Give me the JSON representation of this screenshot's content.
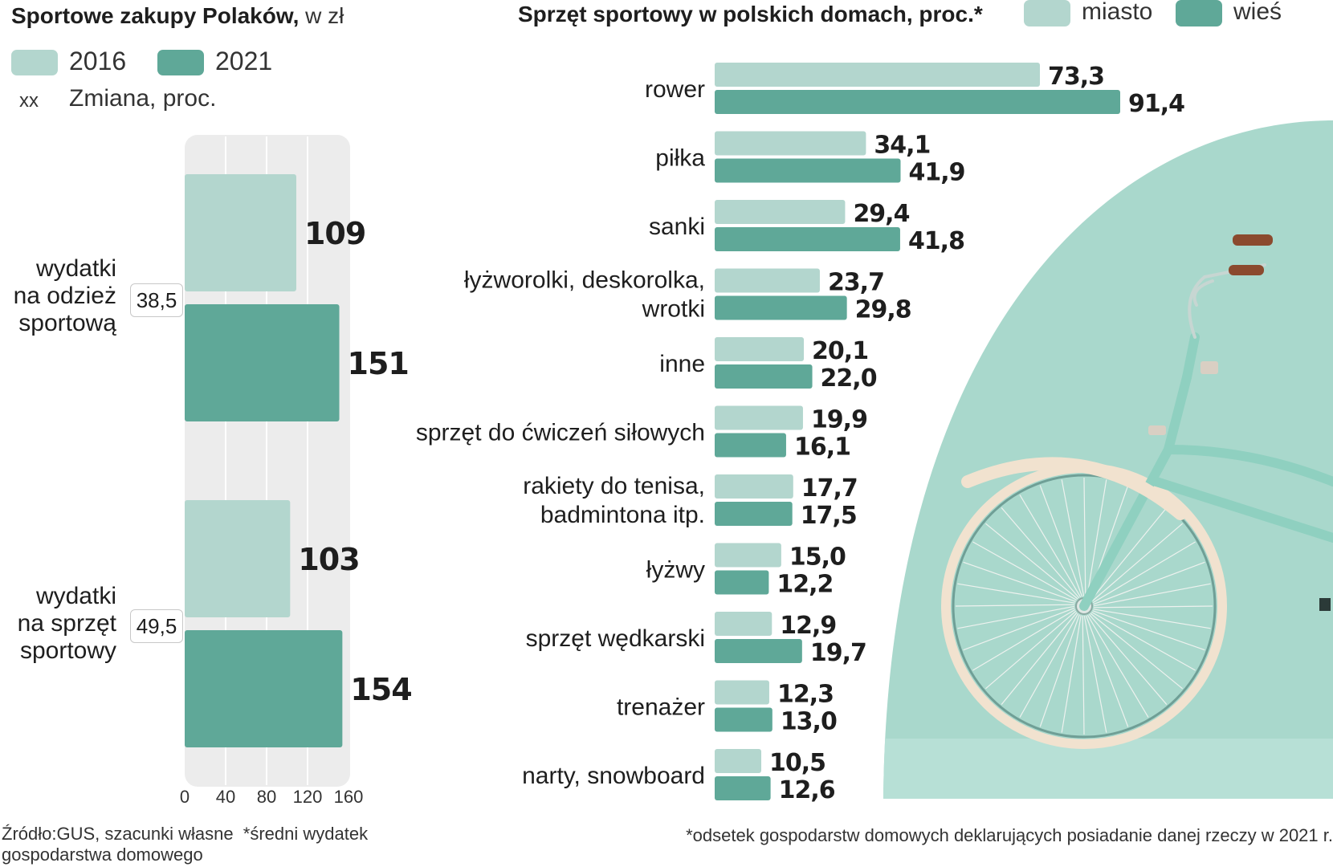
{
  "colors": {
    "light": "#b3d6ce",
    "dark": "#5fa898",
    "panel": "#a9d8cc",
    "gridbg": "#ececec",
    "gridline": "#ffffff"
  },
  "left": {
    "title": "Sportowe zakupy Polaków,",
    "title_unit": "w zł",
    "legend": {
      "a": "2016",
      "b": "2021",
      "change_symbol": "xx",
      "change_label": "Zmiana, proc."
    },
    "footnote_source": "Źródło:GUS, szacunki własne",
    "footnote_note": "*średni wydatek",
    "footnote_note2": "gospodarstwa domowego",
    "groups": [
      {
        "label_lines": [
          "wydatki",
          "na odzież",
          "sportową"
        ],
        "change": "38,5"
      },
      {
        "label_lines": [
          "wydatki",
          "na sprzęt",
          "sportowy"
        ],
        "change": "49,5"
      }
    ]
  },
  "right": {
    "title": "Sprzęt sportowy w polskich domach, proc.*",
    "legend": {
      "a": "miasto",
      "b": "wieś"
    },
    "footnote": "*odsetek gospodarstw domowych deklarujących posiadanie danej rzeczy w 2021 r."
  },
  "chart_data": [
    {
      "type": "bar",
      "title": "Sportowe zakupy Polaków, w zł",
      "orientation": "horizontal",
      "categories": [
        "wydatki na odzież sportową",
        "wydatki na sprzęt sportowy"
      ],
      "series": [
        {
          "name": "2016",
          "values": [
            109,
            103
          ],
          "labels": [
            "109",
            "103"
          ]
        },
        {
          "name": "2021",
          "values": [
            151,
            154
          ],
          "labels": [
            "151",
            "154"
          ]
        }
      ],
      "annotations": {
        "Zmiana, proc.": [
          "38,5",
          "49,5"
        ]
      },
      "xlim": [
        0,
        160
      ],
      "xticks": [
        0,
        40,
        80,
        120,
        160
      ],
      "xtick_labels": [
        "0",
        "40",
        "80",
        "120",
        "160"
      ],
      "grid": true,
      "legend": "top-left"
    },
    {
      "type": "bar",
      "title": "Sprzęt sportowy w polskich domach, proc.*",
      "orientation": "horizontal",
      "categories": [
        "rower",
        "piłka",
        "sanki",
        "łyżworolki, deskorolka, wrotki",
        "inne",
        "sprzęt do ćwiczeń siłowych",
        "rakiety do tenisa, badmintona itp.",
        "łyżwy",
        "sprzęt wędkarski",
        "trenażer",
        "narty, snowboard"
      ],
      "category_label_lines": [
        [
          "rower"
        ],
        [
          "piłka"
        ],
        [
          "sanki"
        ],
        [
          "łyżworolki, deskorolka,",
          "wrotki"
        ],
        [
          "inne"
        ],
        [
          "sprzęt do ćwiczeń siłowych"
        ],
        [
          "rakiety do tenisa,",
          "badmintona itp."
        ],
        [
          "łyżwy"
        ],
        [
          "sprzęt wędkarski"
        ],
        [
          "trenażer"
        ],
        [
          "narty, snowboard"
        ]
      ],
      "series": [
        {
          "name": "miasto",
          "values": [
            73.3,
            34.1,
            29.4,
            23.7,
            20.1,
            19.9,
            17.7,
            15.0,
            12.9,
            12.3,
            10.5
          ],
          "labels": [
            "73,3",
            "34,1",
            "29,4",
            "23,7",
            "20,1",
            "19,9",
            "17,7",
            "15,0",
            "12,9",
            "12,3",
            "10,5"
          ]
        },
        {
          "name": "wieś",
          "values": [
            91.4,
            41.9,
            41.8,
            29.8,
            22.0,
            16.1,
            17.5,
            12.2,
            19.7,
            13.0,
            12.6
          ],
          "labels": [
            "91,4",
            "41,9",
            "41,8",
            "29,8",
            "22,0",
            "16,1",
            "17,5",
            "12,2",
            "19,7",
            "13,0",
            "12,6"
          ]
        }
      ],
      "legend": "top-right"
    }
  ]
}
